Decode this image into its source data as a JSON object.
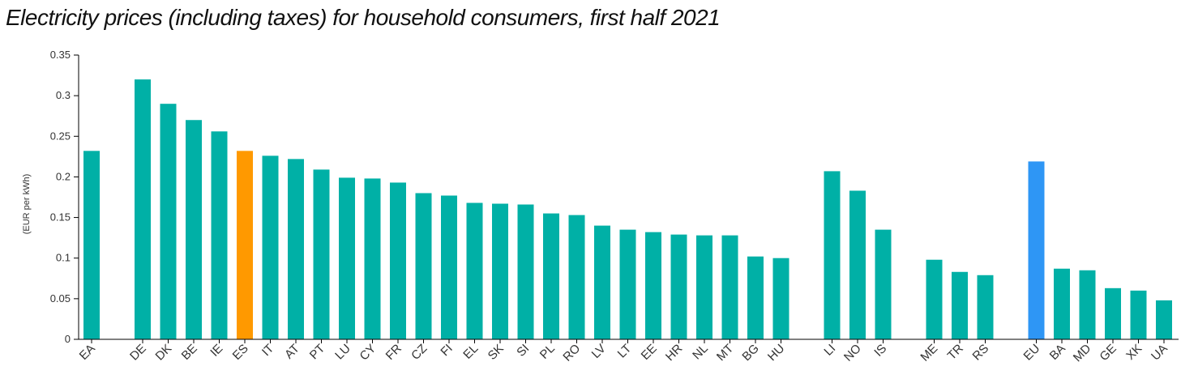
{
  "chart_data": {
    "type": "bar",
    "title": "Electricity prices (including taxes) for household consumers, first half 2021",
    "xlabel": "",
    "ylabel": "(EUR per kWh)",
    "ylim": [
      0,
      0.35
    ],
    "yticks": [
      "0",
      "0.05",
      "0.1",
      "0.15",
      "0.2",
      "0.25",
      "0.3",
      "0.35"
    ],
    "grid": false,
    "legend": "none",
    "categories": [
      "EA",
      "",
      "DE",
      "DK",
      "BE",
      "IE",
      "ES",
      "IT",
      "AT",
      "PT",
      "LU",
      "CY",
      "FR",
      "CZ",
      "FI",
      "EL",
      "SK",
      "SI",
      "PL",
      "RO",
      "LV",
      "LT",
      "EE",
      "HR",
      "NL",
      "MT",
      "BG",
      "HU",
      "",
      "LI",
      "NO",
      "IS",
      "",
      "ME",
      "TR",
      "RS",
      "",
      "EU",
      "BA",
      "MD",
      "GE",
      "XK",
      "UA"
    ],
    "values": [
      0.232,
      null,
      0.32,
      0.29,
      0.27,
      0.256,
      0.232,
      0.226,
      0.222,
      0.209,
      0.199,
      0.198,
      0.193,
      0.18,
      0.177,
      0.168,
      0.167,
      0.166,
      0.155,
      0.153,
      0.14,
      0.135,
      0.132,
      0.129,
      0.128,
      0.128,
      0.102,
      0.1,
      null,
      0.207,
      0.183,
      0.135,
      null,
      0.098,
      0.083,
      0.079,
      null,
      0.219,
      0.087,
      0.085,
      0.063,
      0.06,
      0.048
    ],
    "highlights": {
      "ES": "#ff9900",
      "EU": "#2e96f5"
    },
    "colors": {
      "default": "#00b0a6",
      "axis": "#000000"
    }
  }
}
